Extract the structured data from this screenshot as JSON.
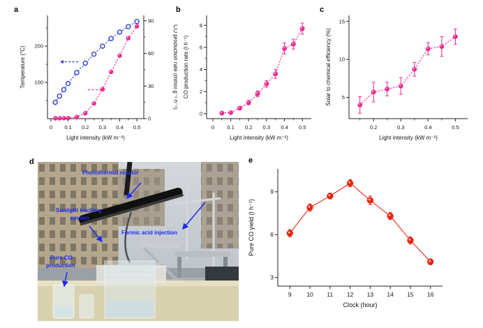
{
  "figure": {
    "panels": {
      "a": "a",
      "b": "b",
      "c": "c",
      "d": "d",
      "e": "e"
    }
  },
  "colors": {
    "blue": "#2b3fd0",
    "pink": "#ed2891",
    "red": "#e8220d",
    "annotation": "#1d2bf2"
  },
  "photo": {
    "labels": {
      "reactor": "Photothermal reactor",
      "tracking_1": "Sunlight tracking",
      "tracking_2": "system",
      "injection": "Formic acid injection",
      "co_1": "Pure CO",
      "co_2": "production"
    }
  },
  "chart_data": [
    {
      "id": "a",
      "type": "line",
      "xlabel": "Light intensity (kW m⁻²)",
      "ylabel": "Temperature (°C)",
      "y2label": "CO production rate (mmol g⁻¹ h⁻¹)",
      "xlim": [
        -0.02,
        0.54
      ],
      "ylim": [
        0,
        285
      ],
      "y2lim": [
        0,
        95
      ],
      "xticks": [
        0,
        0.1,
        0.2,
        0.3,
        0.4,
        0.5
      ],
      "xtick_labels": [
        "0",
        "0.1",
        "0.2",
        "0.3",
        "0.4",
        "0.5"
      ],
      "xminor": [
        0.05,
        0.15,
        0.25,
        0.35,
        0.45
      ],
      "yticks": [
        100,
        200
      ],
      "ytick_labels": [
        "100",
        "200"
      ],
      "yminor": [
        50,
        150,
        250
      ],
      "y2ticks": [
        0,
        30,
        60,
        90
      ],
      "y2tick_labels": [
        "0",
        "30",
        "60",
        "90"
      ],
      "y2minor": [
        15,
        45,
        75
      ],
      "series": [
        {
          "name": "Temperature",
          "axis": "left",
          "color": "blue",
          "marker": "open",
          "line": "dotted",
          "x": [
            0.025,
            0.05,
            0.075,
            0.1,
            0.15,
            0.2,
            0.25,
            0.3,
            0.35,
            0.4,
            0.45,
            0.5
          ],
          "y": [
            45,
            62,
            80,
            97,
            127,
            153,
            178,
            200,
            221,
            239,
            254,
            268
          ]
        },
        {
          "name": "CO production rate",
          "axis": "right",
          "color": "pink",
          "marker": "filled",
          "line": "dotted",
          "x": [
            0.025,
            0.05,
            0.075,
            0.1,
            0.15,
            0.2,
            0.25,
            0.3,
            0.35,
            0.4,
            0.45,
            0.5
          ],
          "y": [
            0.3,
            0.3,
            0.4,
            0.5,
            1.5,
            5,
            14,
            27,
            43,
            58,
            74,
            85
          ]
        }
      ],
      "annotations": [
        {
          "name": "left-axis-arrow",
          "color": "blue",
          "fx1": 0.32,
          "fy1": 0.45,
          "fx2": 0.13,
          "fy2": 0.45,
          "dashed": true
        },
        {
          "name": "right-axis-arrow",
          "color": "pink",
          "fx1": 0.42,
          "fy1": 0.72,
          "fx2": 0.6,
          "fy2": 0.72,
          "dashed": true
        }
      ]
    },
    {
      "id": "b",
      "type": "line",
      "xlabel": "Light intensity (kW m⁻²)",
      "ylabel": "CO production rate (l h⁻¹)",
      "xlim": [
        -0.035,
        0.55
      ],
      "ylim": [
        -0.45,
        8.9
      ],
      "xticks": [
        0,
        0.1,
        0.2,
        0.3,
        0.4,
        0.5
      ],
      "xtick_labels": [
        "0",
        "0.1",
        "0.2",
        "0.3",
        "0.4",
        "0.5"
      ],
      "xminor": [
        0.05,
        0.15,
        0.25,
        0.35,
        0.45
      ],
      "yticks": [
        0,
        2,
        4,
        6,
        8
      ],
      "ytick_labels": [
        "0",
        "2",
        "4",
        "6",
        "8"
      ],
      "yminor": [
        1,
        3,
        5,
        7
      ],
      "series": [
        {
          "name": "CO production rate",
          "axis": "left",
          "color": "pink",
          "marker": "filled",
          "line": "dotted",
          "x": [
            0.05,
            0.1,
            0.15,
            0.2,
            0.25,
            0.3,
            0.35,
            0.4,
            0.45,
            0.5
          ],
          "y": [
            0.05,
            0.1,
            0.5,
            1.0,
            1.8,
            2.7,
            3.6,
            5.9,
            6.3,
            7.7
          ],
          "err": [
            0.08,
            0.1,
            0.15,
            0.2,
            0.25,
            0.3,
            0.4,
            0.5,
            0.45,
            0.5
          ]
        }
      ]
    },
    {
      "id": "c",
      "type": "line",
      "xlabel": "Light intensity (kW m⁻²)",
      "ylabel": "Solar to chemical efficiency (%)",
      "xlim": [
        0.11,
        0.545
      ],
      "ylim": [
        2.2,
        15.8
      ],
      "xticks": [
        0.2,
        0.3,
        0.4,
        0.5
      ],
      "xtick_labels": [
        "0.2",
        "0.3",
        "0.4",
        "0.5"
      ],
      "xminor": [
        0.15,
        0.25,
        0.35,
        0.45
      ],
      "yticks": [
        5,
        10,
        15
      ],
      "ytick_labels": [
        "5",
        "10",
        "15"
      ],
      "series": [
        {
          "name": "Solar to chemical efficiency",
          "axis": "left",
          "color": "pink",
          "marker": "filled",
          "line": "dotted",
          "x": [
            0.15,
            0.2,
            0.25,
            0.3,
            0.35,
            0.4,
            0.45,
            0.5
          ],
          "y": [
            4.0,
            5.7,
            6.1,
            6.5,
            8.7,
            11.4,
            11.7,
            13.0
          ],
          "err": [
            1.1,
            1.3,
            0.9,
            1.1,
            0.9,
            0.8,
            1.3,
            1.0
          ]
        }
      ]
    },
    {
      "id": "e",
      "type": "line",
      "xlabel": "Clock (hour)",
      "ylabel": "Pure CO yield (l h⁻¹)",
      "xlim": [
        8.4,
        16.6
      ],
      "ylim": [
        2.4,
        10.6
      ],
      "xticks": [
        9,
        10,
        11,
        12,
        13,
        14,
        15,
        16
      ],
      "xtick_labels": [
        "9",
        "10",
        "11",
        "12",
        "13",
        "14",
        "15",
        "16"
      ],
      "yticks": [
        3,
        6,
        9
      ],
      "ytick_labels": [
        "3",
        "6",
        "9"
      ],
      "series": [
        {
          "name": "Pure CO yield",
          "axis": "left",
          "color": "red",
          "marker": "filled",
          "line": "solid",
          "x": [
            9,
            10,
            11,
            12,
            13,
            14,
            15,
            16
          ],
          "y": [
            6.1,
            7.9,
            8.7,
            9.6,
            8.4,
            7.3,
            5.6,
            4.1
          ],
          "err": [
            0.25,
            0.25,
            0.2,
            0.25,
            0.3,
            0.25,
            0.25,
            0.2
          ]
        }
      ]
    }
  ]
}
